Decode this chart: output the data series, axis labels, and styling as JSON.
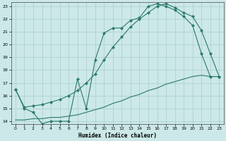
{
  "xlabel": "Humidex (Indice chaleur)",
  "bg_color": "#cce8e8",
  "grid_color": "#aacccc",
  "line_color": "#2a7a6a",
  "xlim": [
    -0.5,
    23.5
  ],
  "ylim": [
    13.8,
    23.3
  ],
  "xticks": [
    0,
    1,
    2,
    3,
    4,
    5,
    6,
    7,
    8,
    9,
    10,
    11,
    12,
    13,
    14,
    15,
    16,
    17,
    18,
    19,
    20,
    21,
    22,
    23
  ],
  "yticks": [
    14,
    15,
    16,
    17,
    18,
    19,
    20,
    21,
    22,
    23
  ],
  "line1_x": [
    0,
    1,
    2,
    3,
    4,
    5,
    6,
    7,
    8,
    9,
    10,
    11,
    12,
    13,
    14,
    15,
    16,
    17,
    18,
    19,
    20,
    21,
    22,
    23
  ],
  "line1_y": [
    16.5,
    15.0,
    14.7,
    13.8,
    14.0,
    14.0,
    14.0,
    17.3,
    15.0,
    18.8,
    20.9,
    21.3,
    21.3,
    21.9,
    22.1,
    23.0,
    23.2,
    23.0,
    22.7,
    22.2,
    21.5,
    19.3,
    17.5,
    17.5
  ],
  "line2_x": [
    0,
    1,
    2,
    3,
    4,
    5,
    6,
    7,
    8,
    9,
    10,
    11,
    12,
    13,
    14,
    15,
    16,
    17,
    18,
    19,
    20,
    21,
    22,
    23
  ],
  "line2_y": [
    16.5,
    15.1,
    15.2,
    15.3,
    15.5,
    15.7,
    16.0,
    16.4,
    17.0,
    17.7,
    18.8,
    19.8,
    20.6,
    21.4,
    22.0,
    22.5,
    23.0,
    23.2,
    22.9,
    22.5,
    22.2,
    21.1,
    19.3,
    17.5
  ],
  "line3_x": [
    0,
    1,
    2,
    3,
    4,
    5,
    6,
    7,
    8,
    9,
    10,
    11,
    12,
    13,
    14,
    15,
    16,
    17,
    18,
    19,
    20,
    21,
    22,
    23
  ],
  "line3_y": [
    14.1,
    14.1,
    14.2,
    14.2,
    14.3,
    14.3,
    14.4,
    14.5,
    14.7,
    14.9,
    15.1,
    15.4,
    15.6,
    15.9,
    16.1,
    16.4,
    16.6,
    16.9,
    17.1,
    17.3,
    17.5,
    17.6,
    17.5,
    17.5
  ]
}
